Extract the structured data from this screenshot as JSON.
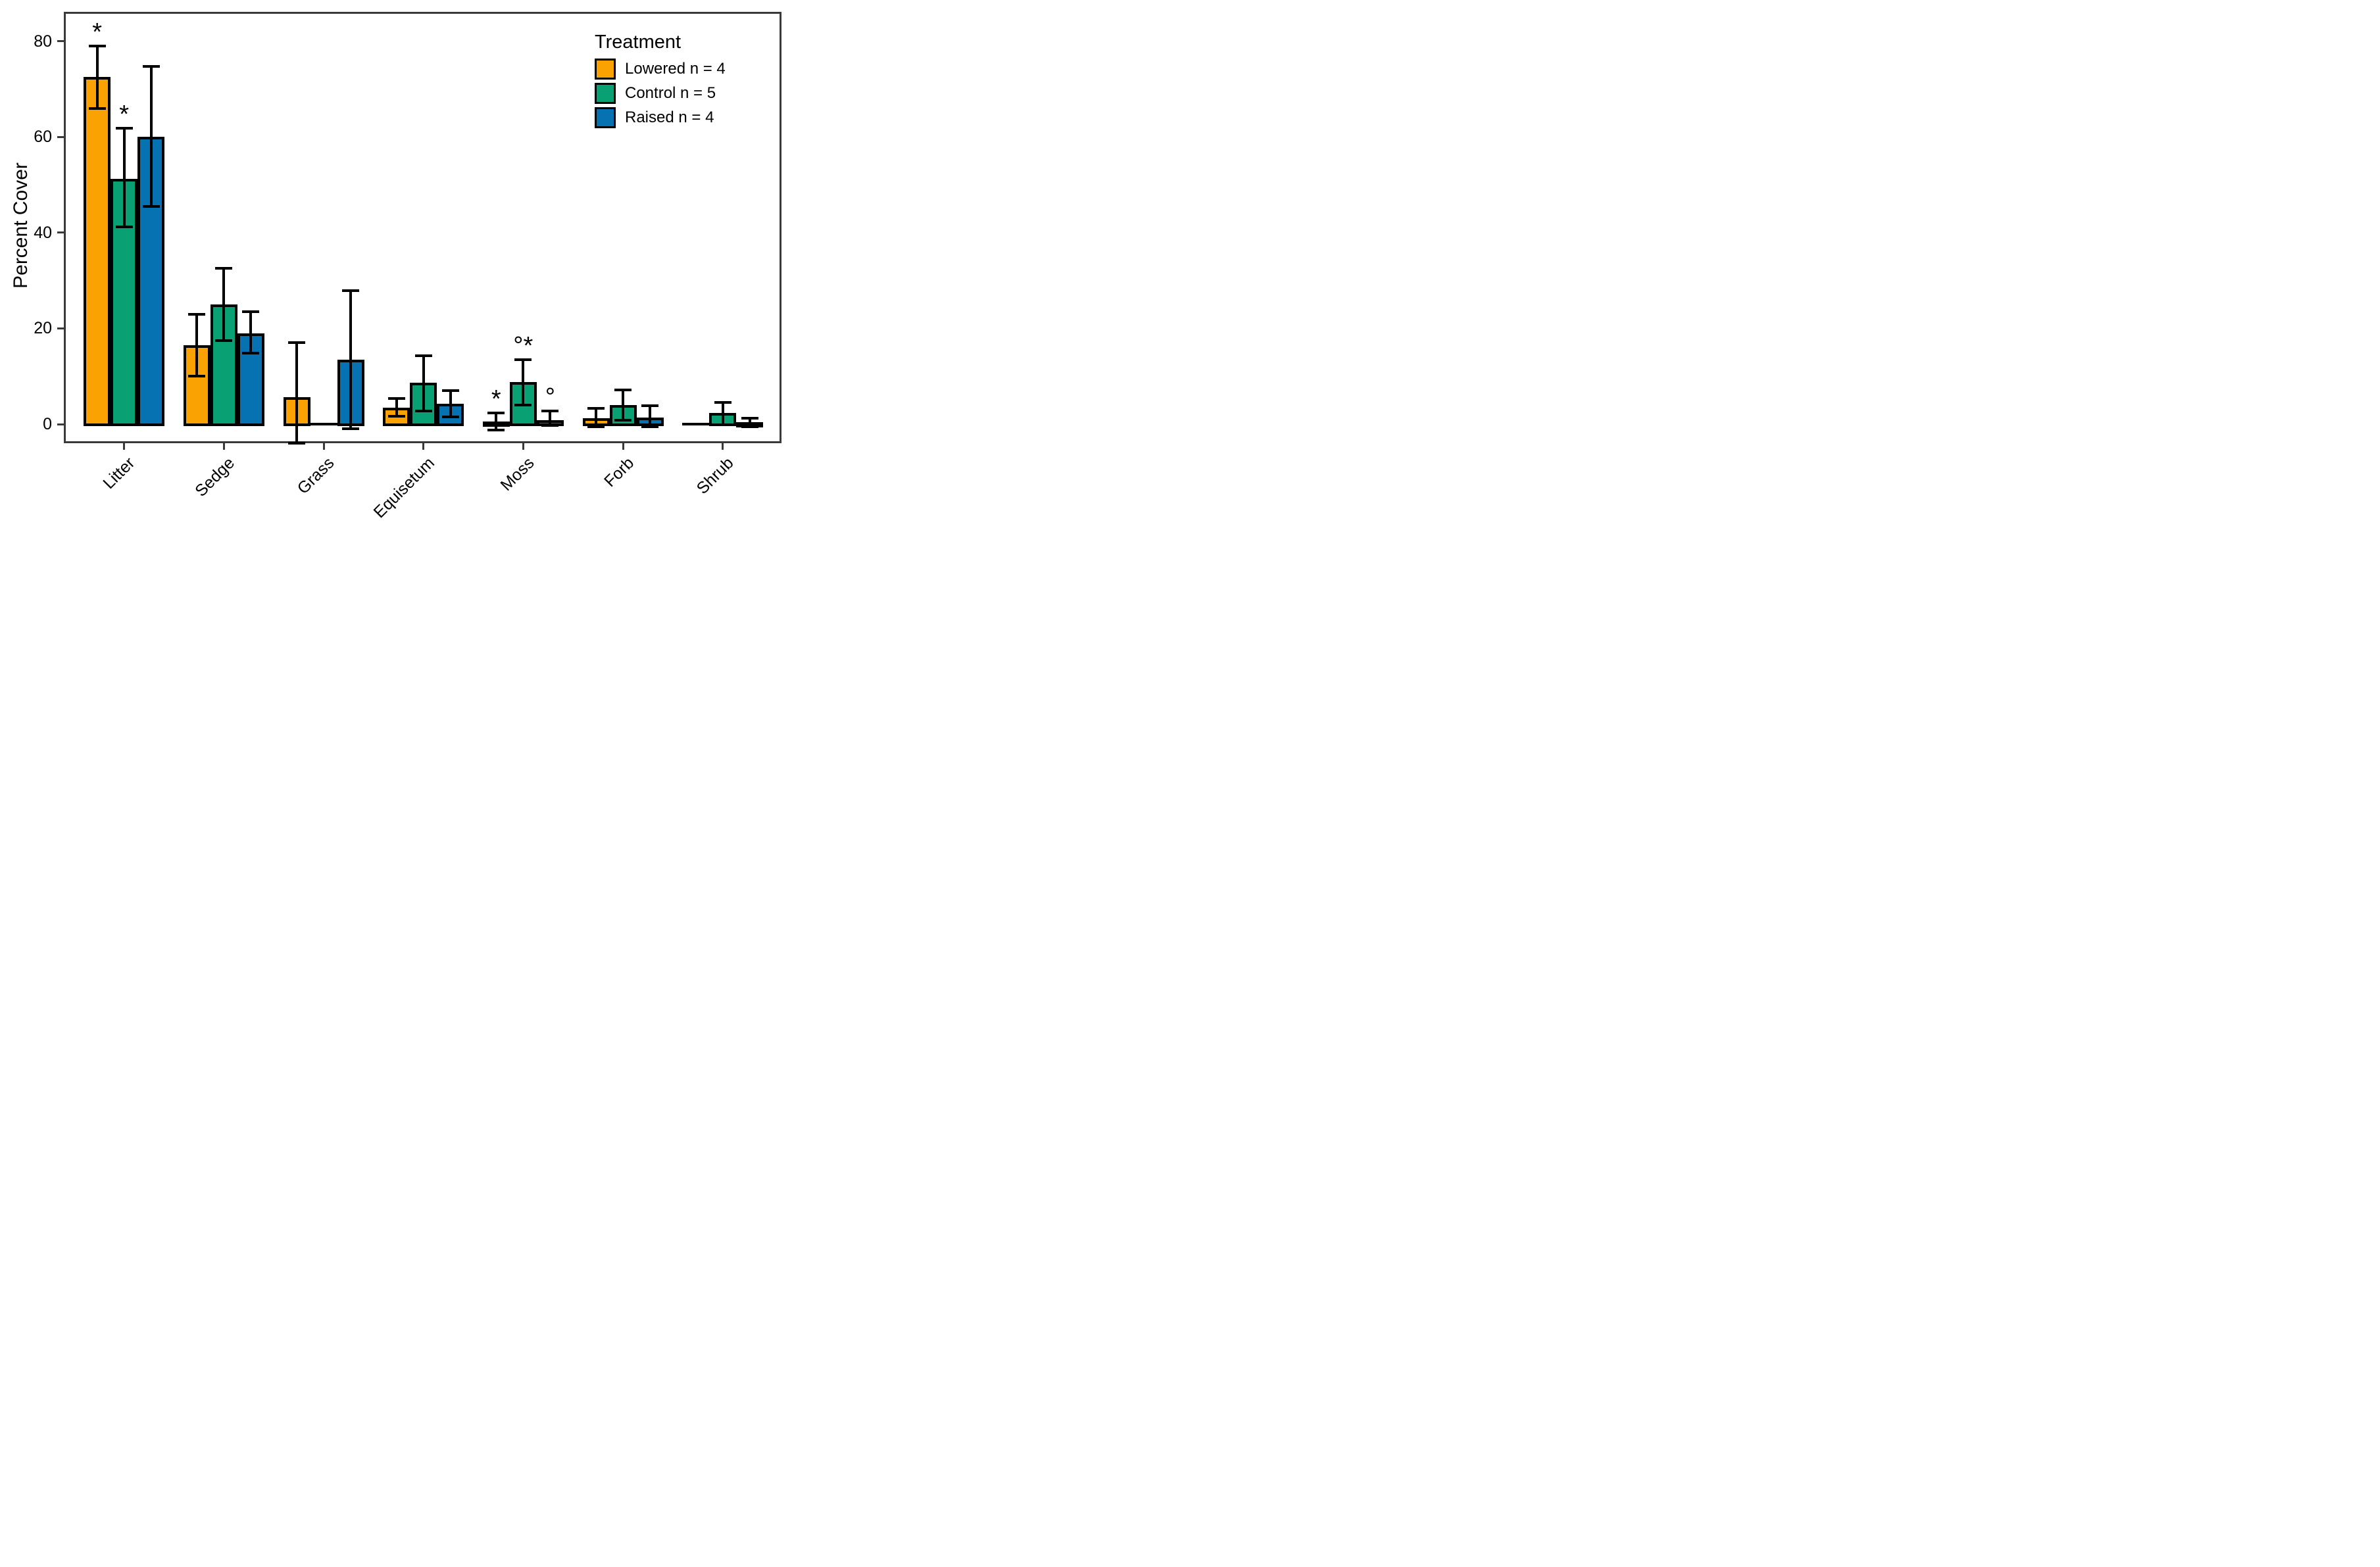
{
  "figure": {
    "background": "#ffffff"
  },
  "legend": {
    "title": "Treatment",
    "items": [
      {
        "label": "Lowered n = 4",
        "color": "#F9A201"
      },
      {
        "label": "Control n = 5",
        "color": "#09A174"
      },
      {
        "label": "Raised n = 4",
        "color": "#0672B2"
      }
    ]
  },
  "chart_data": {
    "type": "bar",
    "title": "",
    "xlabel": "",
    "ylabel": "Percent Cover",
    "ylim": [
      -4,
      86
    ],
    "y_ticks": [
      0,
      20,
      40,
      60,
      80
    ],
    "grid": false,
    "legend_position": "inside-top-right",
    "bar_outline_color": "#000000",
    "error_bar_color": "#000000",
    "categories": [
      "Litter",
      "Sedge",
      "Grass",
      "Equisetum",
      "Moss",
      "Forb",
      "Shrub"
    ],
    "series": [
      {
        "name": "Lowered n = 4",
        "color": "#F9A201",
        "values": [
          72.5,
          16.5,
          5.7,
          3.5,
          0.6,
          1.2,
          0
        ],
        "error_low": [
          66.0,
          10.0,
          -4.0,
          1.6,
          -1.3,
          -0.5,
          null
        ],
        "error_high": [
          79.0,
          23.0,
          17.0,
          5.4,
          2.4,
          3.3,
          null
        ]
      },
      {
        "name": "Control n = 5",
        "color": "#09A174",
        "values": [
          51.3,
          25.0,
          0,
          8.7,
          8.8,
          4.0,
          2.3
        ],
        "error_low": [
          41.2,
          17.5,
          null,
          2.7,
          4.0,
          0.8,
          -0.2
        ],
        "error_high": [
          61.8,
          32.5,
          null,
          14.3,
          13.4,
          7.1,
          4.6
        ]
      },
      {
        "name": "Raised n = 4",
        "color": "#0672B2",
        "values": [
          60.0,
          19.0,
          13.4,
          4.3,
          0.8,
          1.4,
          0.4
        ],
        "error_low": [
          45.4,
          14.8,
          -1.0,
          1.5,
          -0.3,
          -0.6,
          -0.5
        ],
        "error_high": [
          74.7,
          23.5,
          27.9,
          7.0,
          2.7,
          3.9,
          1.3
        ]
      }
    ],
    "annotations": [
      {
        "category": "Litter",
        "series": "Lowered n = 4",
        "text": "*"
      },
      {
        "category": "Litter",
        "series": "Control n = 5",
        "text": "*"
      },
      {
        "category": "Moss",
        "series": "Lowered n = 4",
        "text": "*"
      },
      {
        "category": "Moss",
        "series": "Control n = 5",
        "text": "°*"
      },
      {
        "category": "Moss",
        "series": "Raised n = 4",
        "text": "°"
      }
    ]
  }
}
